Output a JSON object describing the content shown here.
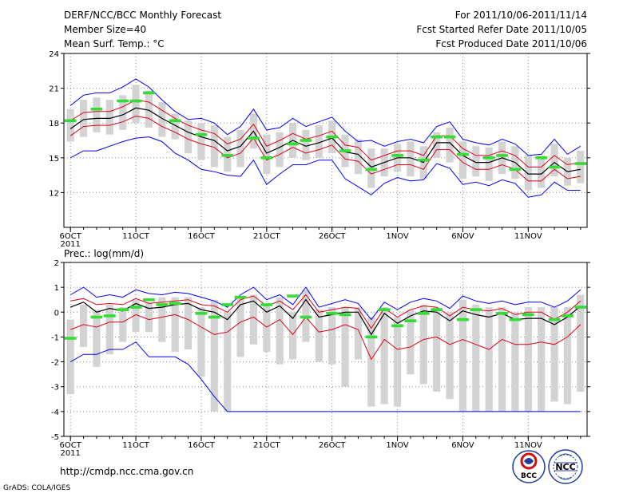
{
  "header": {
    "title": "DERF/NCC/BCC Monthly Forecast",
    "member_size": "Member Size=40",
    "variable_top": "Mean Surf. Temp.: °C",
    "forecast_period": "For 2011/10/06-2011/11/14",
    "fcst_started": "Fcst Started Refer Date 2011/10/05",
    "fcst_produced": "Fcst Produced Date 2011/10/06"
  },
  "footer": {
    "url": "http://cmdp.ncc.cma.gov.cn",
    "credit": "GrADS: COLA/IGES",
    "logo_bcc": "BCC",
    "logo_ncc": "NCC"
  },
  "colors": {
    "box": "#d3d3d3",
    "mean": "#000000",
    "inner": "#e0001c",
    "outer": "#0000ff",
    "obs": "#33dd33",
    "grid": "#888888"
  },
  "chart_data": [
    {
      "id": "temperature",
      "type": "line",
      "title": "Mean Surf. Temp.: °C",
      "x_tick_labels": [
        "6OCT",
        "11OCT",
        "16OCT",
        "21OCT",
        "26OCT",
        "1NOV",
        "6NOV",
        "11NOV"
      ],
      "x_tick_days": [
        1,
        6,
        11,
        16,
        21,
        26,
        31,
        36
      ],
      "x_year_label": "2011",
      "xlim": [
        0.5,
        40.5
      ],
      "ylim": [
        9,
        24
      ],
      "y_tick_labels": [
        "12",
        "15",
        "18",
        "21",
        "24"
      ],
      "y_ticks": [
        12,
        15,
        18,
        21,
        24
      ],
      "days": [
        1,
        2,
        3,
        4,
        5,
        6,
        7,
        8,
        9,
        10,
        11,
        12,
        13,
        14,
        15,
        16,
        17,
        18,
        19,
        20,
        21,
        22,
        23,
        24,
        25,
        26,
        27,
        28,
        29,
        30,
        31,
        32,
        33,
        34,
        35,
        36,
        37,
        38,
        39,
        40
      ],
      "mean": [
        17.5,
        18.3,
        18.4,
        18.4,
        18.7,
        19.3,
        19.1,
        18.4,
        17.8,
        17.2,
        16.8,
        16.5,
        15.6,
        16.0,
        17.3,
        15.4,
        15.9,
        16.5,
        16.0,
        16.3,
        16.7,
        15.5,
        15.3,
        14.2,
        14.6,
        15.0,
        15.0,
        14.6,
        16.3,
        16.3,
        15.2,
        14.6,
        14.6,
        15.0,
        14.6,
        13.6,
        13.6,
        14.6,
        13.8,
        14.0
      ],
      "inner_upper": [
        18.2,
        18.9,
        19.0,
        19.0,
        19.4,
        20.0,
        19.8,
        19.1,
        18.4,
        17.8,
        17.4,
        17.1,
        16.2,
        16.6,
        17.9,
        16.0,
        16.5,
        17.1,
        16.6,
        16.9,
        17.3,
        16.1,
        15.9,
        14.8,
        15.2,
        15.6,
        15.6,
        15.2,
        16.9,
        16.9,
        15.8,
        15.2,
        15.2,
        15.6,
        15.2,
        14.2,
        14.2,
        15.2,
        14.4,
        14.6
      ],
      "inner_lower": [
        16.9,
        17.7,
        17.8,
        17.8,
        18.1,
        18.6,
        18.4,
        17.7,
        17.2,
        16.6,
        16.2,
        15.9,
        15.0,
        15.4,
        16.7,
        14.8,
        15.3,
        15.9,
        15.4,
        15.7,
        16.1,
        14.9,
        14.7,
        13.6,
        14.0,
        14.4,
        14.4,
        14.0,
        15.7,
        15.7,
        14.6,
        14.0,
        14.0,
        14.4,
        14.0,
        13.0,
        13.0,
        14.0,
        13.2,
        13.4
      ],
      "outer_upper": [
        19.5,
        20.4,
        20.6,
        20.6,
        21.1,
        21.8,
        21.1,
        20.0,
        19.0,
        18.3,
        18.4,
        18.0,
        17.0,
        17.7,
        19.2,
        17.4,
        17.6,
        18.4,
        17.7,
        18.1,
        18.5,
        17.3,
        16.4,
        16.5,
        16.0,
        16.4,
        16.6,
        16.3,
        17.7,
        18.1,
        16.6,
        16.3,
        16.1,
        16.6,
        16.2,
        15.2,
        15.3,
        16.6,
        15.3,
        16.0
      ],
      "outer_lower": [
        15.0,
        15.6,
        15.6,
        16.0,
        16.4,
        16.7,
        16.8,
        16.4,
        15.4,
        14.8,
        14.0,
        13.8,
        13.5,
        13.4,
        14.8,
        12.7,
        13.6,
        14.4,
        14.4,
        14.8,
        14.8,
        13.2,
        12.5,
        11.8,
        12.8,
        13.3,
        13.0,
        13.1,
        14.5,
        14.1,
        12.7,
        12.9,
        12.6,
        13.1,
        12.8,
        11.6,
        11.8,
        12.9,
        12.2,
        12.2
      ],
      "box_upper": [
        19.2,
        20.0,
        20.2,
        20.0,
        20.4,
        21.3,
        20.8,
        19.8,
        18.8,
        18.2,
        18.0,
        17.8,
        16.8,
        17.4,
        18.8,
        17.0,
        17.2,
        18.0,
        17.4,
        17.8,
        18.2,
        17.0,
        16.6,
        15.8,
        15.8,
        16.2,
        16.4,
        16.0,
        17.2,
        17.6,
        16.4,
        16.0,
        15.9,
        16.4,
        16.0,
        15.2,
        15.2,
        16.2,
        15.0,
        15.6
      ],
      "box_lower": [
        16.4,
        16.8,
        17.2,
        17.0,
        17.4,
        18.0,
        17.6,
        16.8,
        16.6,
        15.4,
        14.8,
        14.2,
        13.8,
        14.2,
        15.8,
        13.6,
        14.2,
        15.0,
        14.8,
        15.0,
        15.4,
        14.2,
        13.6,
        12.4,
        13.4,
        13.8,
        13.4,
        13.2,
        15.0,
        14.6,
        13.2,
        13.4,
        13.0,
        13.6,
        13.2,
        12.2,
        12.4,
        13.4,
        12.6,
        12.8
      ],
      "obs": [
        {
          "day": 1,
          "value": 18.2
        },
        {
          "day": 3,
          "value": 19.2
        },
        {
          "day": 5,
          "value": 19.9
        },
        {
          "day": 6,
          "value": 19.9
        },
        {
          "day": 7,
          "value": 20.6
        },
        {
          "day": 9,
          "value": 18.2
        },
        {
          "day": 11,
          "value": 17.0
        },
        {
          "day": 13,
          "value": 15.2
        },
        {
          "day": 15,
          "value": 16.7
        },
        {
          "day": 16,
          "value": 15.0
        },
        {
          "day": 18,
          "value": 16.2
        },
        {
          "day": 19,
          "value": 16.5
        },
        {
          "day": 21,
          "value": 16.8
        },
        {
          "day": 22,
          "value": 15.6
        },
        {
          "day": 24,
          "value": 14.0
        },
        {
          "day": 26,
          "value": 15.2
        },
        {
          "day": 28,
          "value": 14.8
        },
        {
          "day": 29,
          "value": 16.8
        },
        {
          "day": 30,
          "value": 16.8
        },
        {
          "day": 31,
          "value": 15.3
        },
        {
          "day": 33,
          "value": 15.0
        },
        {
          "day": 34,
          "value": 15.2
        },
        {
          "day": 35,
          "value": 14.0
        },
        {
          "day": 37,
          "value": 15.0
        },
        {
          "day": 38,
          "value": 14.2
        },
        {
          "day": 40,
          "value": 14.5
        }
      ]
    },
    {
      "id": "precipitation",
      "type": "line",
      "title": "Prec.: log(mm/d)",
      "x_tick_labels": [
        "6OCT",
        "11OCT",
        "16OCT",
        "21OCT",
        "26OCT",
        "1NOV",
        "6NOV",
        "11NOV"
      ],
      "x_tick_days": [
        1,
        6,
        11,
        16,
        21,
        26,
        31,
        36
      ],
      "x_year_label": "2011",
      "xlim": [
        0.5,
        40.5
      ],
      "ylim": [
        -5,
        2
      ],
      "y_tick_labels": [
        "-5",
        "-4",
        "-3",
        "-2",
        "-1",
        "0",
        "1",
        "2"
      ],
      "y_ticks": [
        -5,
        -4,
        -3,
        -2,
        -1,
        0,
        1,
        2
      ],
      "days": [
        1,
        2,
        3,
        4,
        5,
        6,
        7,
        8,
        9,
        10,
        11,
        12,
        13,
        14,
        15,
        16,
        17,
        18,
        19,
        20,
        21,
        22,
        23,
        24,
        25,
        26,
        27,
        28,
        29,
        30,
        31,
        32,
        33,
        34,
        35,
        36,
        37,
        38,
        39,
        40
      ],
      "mean": [
        0.2,
        0.4,
        0.0,
        0.15,
        0.05,
        0.35,
        0.15,
        0.2,
        0.3,
        0.35,
        0.1,
        0.0,
        -0.3,
        0.3,
        0.45,
        0.0,
        0.25,
        -0.25,
        0.5,
        -0.2,
        -0.1,
        0.0,
        0.0,
        -0.9,
        -0.05,
        -0.45,
        -0.15,
        0.05,
        0.0,
        -0.35,
        0.05,
        -0.1,
        -0.2,
        -0.05,
        -0.3,
        -0.25,
        -0.25,
        -0.5,
        -0.2,
        0.25
      ],
      "inner_upper": [
        0.45,
        0.55,
        0.3,
        0.35,
        0.3,
        0.55,
        0.35,
        0.4,
        0.45,
        0.5,
        0.3,
        0.25,
        0.0,
        0.5,
        0.65,
        0.25,
        0.45,
        0.1,
        0.7,
        0.0,
        0.1,
        0.2,
        0.15,
        -0.65,
        0.15,
        -0.2,
        0.1,
        0.25,
        0.2,
        -0.15,
        0.2,
        0.1,
        0.05,
        0.15,
        -0.1,
        0.0,
        0.0,
        -0.3,
        0.0,
        0.45
      ],
      "inner_lower": [
        -0.7,
        -0.5,
        -0.6,
        -0.4,
        -0.4,
        -0.1,
        -0.3,
        -0.2,
        -0.1,
        -0.3,
        -0.6,
        -0.9,
        -0.8,
        -0.4,
        -0.2,
        -0.6,
        -0.3,
        -0.9,
        -0.2,
        -0.8,
        -0.7,
        -0.5,
        -0.7,
        -1.9,
        -1.1,
        -1.5,
        -1.4,
        -1.1,
        -1.0,
        -1.3,
        -1.1,
        -1.3,
        -1.5,
        -1.1,
        -1.3,
        -1.3,
        -1.2,
        -1.3,
        -1.0,
        -0.5
      ],
      "outer_upper": [
        0.7,
        1.0,
        0.6,
        0.7,
        0.6,
        0.9,
        0.75,
        0.7,
        0.8,
        0.75,
        0.6,
        0.45,
        0.2,
        0.7,
        1.0,
        0.5,
        0.7,
        0.3,
        1.0,
        0.2,
        0.35,
        0.5,
        0.35,
        -0.3,
        0.4,
        0.1,
        0.4,
        0.55,
        0.45,
        0.15,
        0.65,
        0.45,
        0.35,
        0.45,
        0.3,
        0.4,
        0.4,
        0.2,
        0.45,
        0.9
      ],
      "outer_lower": [
        -2.0,
        -1.7,
        -1.7,
        -1.5,
        -1.5,
        -1.2,
        -1.8,
        -1.8,
        -1.8,
        -2.1,
        -2.7,
        -3.4,
        -4.0,
        -4.0,
        -4.0,
        -4.0,
        -4.0,
        -4.0,
        -4.0,
        -4.0,
        -4.0,
        -4.0,
        -4.0,
        -4.0,
        -4.0,
        -4.0,
        -4.0,
        -4.0,
        -4.0,
        -4.0,
        -4.0,
        -4.0,
        -4.0,
        -4.0,
        -4.0,
        -4.0,
        -4.0,
        -4.0,
        -4.0,
        -4.0
      ],
      "box_upper": [
        -0.3,
        0.3,
        0.1,
        0.3,
        0.2,
        0.5,
        0.4,
        0.6,
        0.6,
        0.6,
        0.2,
        0.5,
        0.0,
        0.6,
        0.7,
        0.3,
        0.6,
        0.0,
        0.9,
        0.1,
        0.2,
        0.2,
        0.2,
        -0.2,
        0.2,
        -0.2,
        0.1,
        0.3,
        0.2,
        0.0,
        0.5,
        0.3,
        0.2,
        0.2,
        0.0,
        0.2,
        0.2,
        0.2,
        0.2,
        0.7
      ],
      "box_lower": [
        -3.3,
        -1.4,
        -2.2,
        -1.7,
        -1.2,
        -0.8,
        -0.8,
        -1.2,
        -1.6,
        -1.5,
        -2.6,
        -4.0,
        -4.0,
        -1.8,
        -1.3,
        -1.6,
        -2.1,
        -1.9,
        -1.2,
        -2.0,
        -2.1,
        -3.0,
        -1.9,
        -3.8,
        -3.7,
        -3.8,
        -2.5,
        -2.9,
        -3.2,
        -3.5,
        -4.0,
        -4.0,
        -4.0,
        -4.0,
        -4.0,
        -4.0,
        -4.0,
        -3.6,
        -3.7,
        -3.2
      ],
      "obs": [
        {
          "day": 1,
          "value": -1.05
        },
        {
          "day": 3,
          "value": -0.2
        },
        {
          "day": 4,
          "value": -0.15
        },
        {
          "day": 5,
          "value": 0.1
        },
        {
          "day": 6,
          "value": 0.2
        },
        {
          "day": 7,
          "value": 0.5
        },
        {
          "day": 8,
          "value": 0.3
        },
        {
          "day": 9,
          "value": 0.35
        },
        {
          "day": 11,
          "value": -0.05
        },
        {
          "day": 12,
          "value": -0.2
        },
        {
          "day": 13,
          "value": 0.3
        },
        {
          "day": 14,
          "value": 0.6
        },
        {
          "day": 16,
          "value": 0.3
        },
        {
          "day": 18,
          "value": 0.65
        },
        {
          "day": 19,
          "value": -0.2
        },
        {
          "day": 21,
          "value": -0.05
        },
        {
          "day": 22,
          "value": -0.1
        },
        {
          "day": 24,
          "value": -1.0
        },
        {
          "day": 25,
          "value": 0.1
        },
        {
          "day": 26,
          "value": -0.55
        },
        {
          "day": 27,
          "value": -0.35
        },
        {
          "day": 28,
          "value": -0.05
        },
        {
          "day": 29,
          "value": 0.1
        },
        {
          "day": 31,
          "value": -0.3
        },
        {
          "day": 32,
          "value": 0.1
        },
        {
          "day": 34,
          "value": -0.05
        },
        {
          "day": 35,
          "value": -0.3
        },
        {
          "day": 36,
          "value": -0.1
        },
        {
          "day": 38,
          "value": -0.3
        },
        {
          "day": 39,
          "value": -0.15
        },
        {
          "day": 40,
          "value": 0.2
        }
      ]
    }
  ]
}
